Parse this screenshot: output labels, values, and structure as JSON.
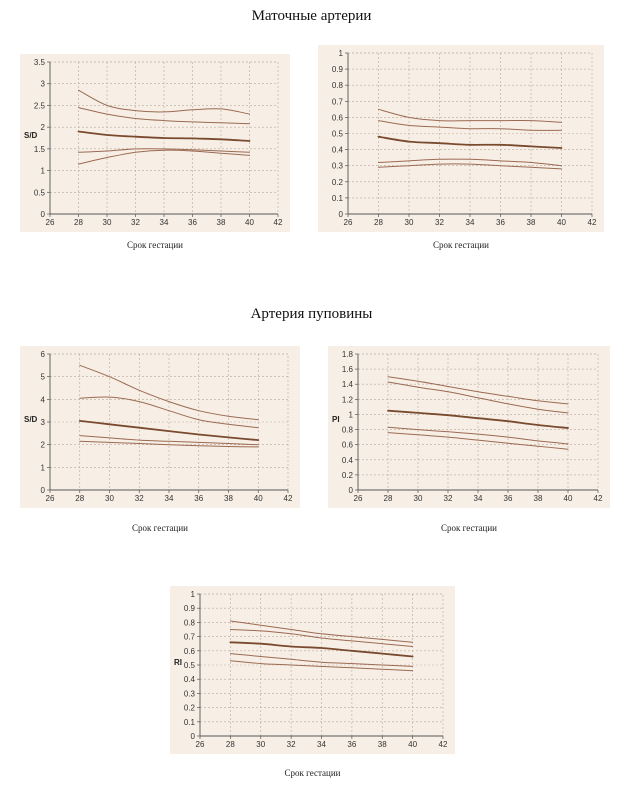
{
  "titles": {
    "uterine": "Маточные артерии",
    "umbilical": "Артерия пуповины"
  },
  "colors": {
    "plot_bg": "#f7efe6",
    "median": "#7a4a2e",
    "bound": "#9b6a52",
    "grid": "#b9aaa0",
    "axis": "#555555"
  },
  "chart_data": [
    {
      "id": "uterine-sd",
      "type": "line",
      "xlabel": "Срок гестации",
      "ylabel": "S/D",
      "xlim": [
        26,
        42
      ],
      "ylim": [
        0,
        3.5
      ],
      "xticks": [
        "26",
        "28",
        "30",
        "32",
        "34",
        "36",
        "38",
        "40",
        "42"
      ],
      "yticks": [
        "0",
        "0.5",
        "1",
        "1.5",
        "2",
        "2.5",
        "3",
        "3.5"
      ],
      "grid": true,
      "x": [
        28,
        30,
        32,
        34,
        36,
        38,
        40
      ],
      "series": [
        {
          "role": "bound",
          "values": [
            2.85,
            2.5,
            2.38,
            2.35,
            2.4,
            2.42,
            2.3
          ]
        },
        {
          "role": "bound",
          "values": [
            2.45,
            2.3,
            2.2,
            2.15,
            2.12,
            2.1,
            2.08
          ]
        },
        {
          "role": "median",
          "values": [
            1.9,
            1.82,
            1.78,
            1.75,
            1.74,
            1.72,
            1.68
          ]
        },
        {
          "role": "bound",
          "values": [
            1.42,
            1.45,
            1.5,
            1.5,
            1.48,
            1.45,
            1.42
          ]
        },
        {
          "role": "bound",
          "values": [
            1.15,
            1.3,
            1.42,
            1.47,
            1.45,
            1.4,
            1.35
          ]
        }
      ]
    },
    {
      "id": "uterine-ri",
      "type": "line",
      "xlabel": "Срок гестации",
      "ylabel": "",
      "xlim": [
        26,
        42
      ],
      "ylim": [
        0,
        1
      ],
      "xticks": [
        "26",
        "28",
        "30",
        "32",
        "34",
        "36",
        "38",
        "40",
        "42"
      ],
      "yticks": [
        "0",
        "0.1",
        "0.2",
        "0.3",
        "0.4",
        "0.5",
        "0.6",
        "0.7",
        "0.8",
        "0.9",
        "1"
      ],
      "grid": true,
      "x": [
        28,
        30,
        32,
        34,
        36,
        38,
        40
      ],
      "series": [
        {
          "role": "bound",
          "values": [
            0.65,
            0.6,
            0.58,
            0.58,
            0.58,
            0.58,
            0.57
          ]
        },
        {
          "role": "bound",
          "values": [
            0.58,
            0.55,
            0.54,
            0.53,
            0.53,
            0.52,
            0.52
          ]
        },
        {
          "role": "median",
          "values": [
            0.48,
            0.45,
            0.44,
            0.43,
            0.43,
            0.42,
            0.41
          ]
        },
        {
          "role": "bound",
          "values": [
            0.32,
            0.33,
            0.34,
            0.34,
            0.33,
            0.32,
            0.3
          ]
        },
        {
          "role": "bound",
          "values": [
            0.29,
            0.3,
            0.31,
            0.31,
            0.3,
            0.29,
            0.28
          ]
        }
      ]
    },
    {
      "id": "umbilical-sd",
      "type": "line",
      "xlabel": "Срок гестации",
      "ylabel": "S/D",
      "xlim": [
        26,
        42
      ],
      "ylim": [
        0,
        6
      ],
      "xticks": [
        "26",
        "28",
        "30",
        "32",
        "34",
        "36",
        "38",
        "40",
        "42"
      ],
      "yticks": [
        "0",
        "1",
        "2",
        "3",
        "4",
        "5",
        "6"
      ],
      "grid": true,
      "x": [
        28,
        30,
        32,
        34,
        36,
        38,
        40
      ],
      "series": [
        {
          "role": "bound",
          "values": [
            5.5,
            5.0,
            4.4,
            3.9,
            3.5,
            3.25,
            3.1
          ]
        },
        {
          "role": "bound",
          "values": [
            4.05,
            4.1,
            3.9,
            3.5,
            3.1,
            2.9,
            2.75
          ]
        },
        {
          "role": "median",
          "values": [
            3.05,
            2.9,
            2.75,
            2.6,
            2.45,
            2.32,
            2.2
          ]
        },
        {
          "role": "bound",
          "values": [
            2.4,
            2.3,
            2.2,
            2.15,
            2.1,
            2.05,
            2.0
          ]
        },
        {
          "role": "bound",
          "values": [
            2.15,
            2.1,
            2.05,
            2.0,
            1.95,
            1.92,
            1.9
          ]
        }
      ]
    },
    {
      "id": "umbilical-pi",
      "type": "line",
      "xlabel": "Срок гестации",
      "ylabel": "PI",
      "xlim": [
        26,
        42
      ],
      "ylim": [
        0,
        1.8
      ],
      "xticks": [
        "26",
        "28",
        "30",
        "32",
        "34",
        "36",
        "38",
        "40",
        "42"
      ],
      "yticks": [
        "0",
        "0.2",
        "0.4",
        "0.6",
        "0.8",
        "1",
        "1.2",
        "1.4",
        "1.6",
        "1.8"
      ],
      "grid": true,
      "x": [
        28,
        30,
        32,
        34,
        36,
        38,
        40
      ],
      "series": [
        {
          "role": "bound",
          "values": [
            1.5,
            1.44,
            1.37,
            1.3,
            1.24,
            1.18,
            1.14
          ]
        },
        {
          "role": "bound",
          "values": [
            1.43,
            1.36,
            1.3,
            1.22,
            1.14,
            1.07,
            1.02
          ]
        },
        {
          "role": "median",
          "values": [
            1.05,
            1.02,
            0.99,
            0.95,
            0.91,
            0.86,
            0.82
          ]
        },
        {
          "role": "bound",
          "values": [
            0.83,
            0.8,
            0.77,
            0.74,
            0.7,
            0.65,
            0.61
          ]
        },
        {
          "role": "bound",
          "values": [
            0.76,
            0.73,
            0.7,
            0.66,
            0.62,
            0.58,
            0.54
          ]
        }
      ]
    },
    {
      "id": "umbilical-ri",
      "type": "line",
      "xlabel": "Срок гестации",
      "ylabel": "RI",
      "xlim": [
        26,
        42
      ],
      "ylim": [
        0,
        1
      ],
      "xticks": [
        "26",
        "28",
        "30",
        "32",
        "34",
        "36",
        "38",
        "40",
        "42"
      ],
      "yticks": [
        "0",
        "0.1",
        "0.2",
        "0.3",
        "0.4",
        "0.5",
        "0.6",
        "0.7",
        "0.8",
        "0.9",
        "1"
      ],
      "grid": true,
      "x": [
        28,
        30,
        32,
        34,
        36,
        38,
        40
      ],
      "series": [
        {
          "role": "bound",
          "values": [
            0.81,
            0.78,
            0.75,
            0.72,
            0.7,
            0.68,
            0.66
          ]
        },
        {
          "role": "bound",
          "values": [
            0.75,
            0.74,
            0.72,
            0.69,
            0.67,
            0.65,
            0.63
          ]
        },
        {
          "role": "median",
          "values": [
            0.66,
            0.65,
            0.63,
            0.62,
            0.6,
            0.58,
            0.56
          ]
        },
        {
          "role": "bound",
          "values": [
            0.58,
            0.56,
            0.54,
            0.52,
            0.51,
            0.5,
            0.49
          ]
        },
        {
          "role": "bound",
          "values": [
            0.53,
            0.51,
            0.5,
            0.49,
            0.48,
            0.47,
            0.46
          ]
        }
      ]
    }
  ]
}
